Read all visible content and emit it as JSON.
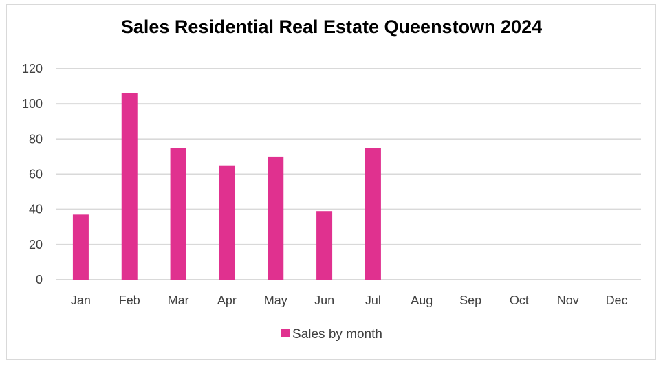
{
  "chart_data": {
    "type": "bar",
    "title": "Sales Residential Real Estate Queenstown 2024",
    "categories": [
      "Jan",
      "Feb",
      "Mar",
      "Apr",
      "May",
      "Jun",
      "Jul",
      "Aug",
      "Sep",
      "Oct",
      "Nov",
      "Dec"
    ],
    "series": [
      {
        "name": "Sales by month",
        "values": [
          37,
          106,
          75,
          65,
          70,
          39,
          75,
          null,
          null,
          null,
          null,
          null
        ]
      }
    ],
    "ylim": [
      0,
      120
    ],
    "yticks": [
      "0",
      "20",
      "40",
      "60",
      "80",
      "100",
      "120"
    ],
    "xlabel": "",
    "ylabel": "",
    "grid": true,
    "legend": "bottom",
    "bar_color": "#e0318f",
    "grid_color": "#d9d9d9"
  }
}
